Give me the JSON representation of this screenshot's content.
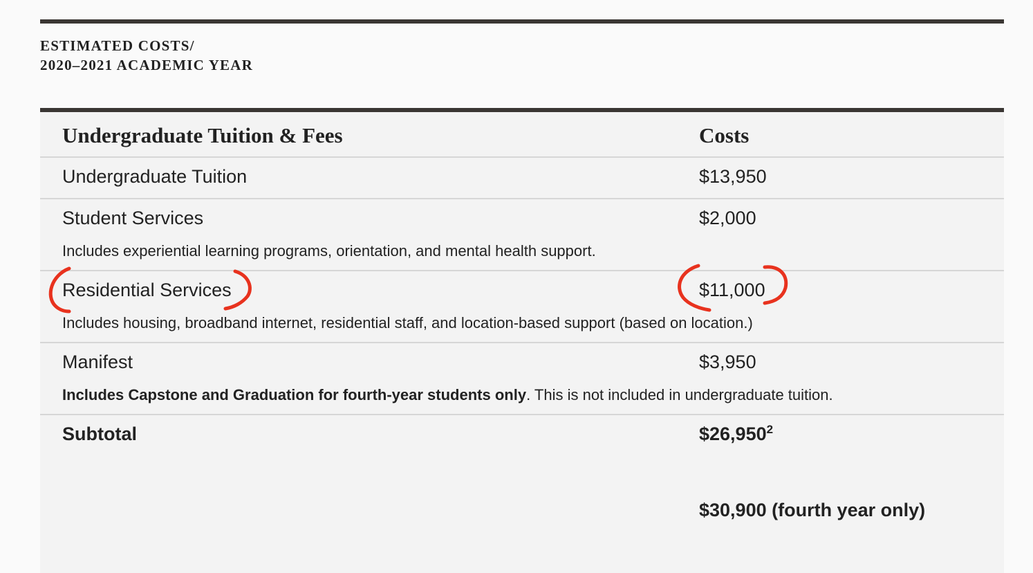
{
  "heading": {
    "line1": "ESTIMATED COSTS/",
    "line2": "2020–2021 ACADEMIC YEAR"
  },
  "table": {
    "header": {
      "label": "Undergraduate Tuition & Fees",
      "cost": "Costs"
    },
    "rows": [
      {
        "label": "Undergraduate Tuition",
        "cost": "$13,950"
      },
      {
        "label": "Student Services",
        "cost": "$2,000",
        "description": "Includes experiential learning programs, orientation, and mental health support."
      },
      {
        "label": "Residential Services",
        "cost": "$11,000",
        "description": "Includes housing, broadband internet, residential staff, and location-based support (based on location.)"
      },
      {
        "label": "Manifest",
        "cost": "$3,950",
        "description_bold": "Includes Capstone and Graduation for fourth-year students only",
        "description_rest": ". This is not included in undergraduate tuition."
      }
    ],
    "subtotal": {
      "label": "Subtotal",
      "cost": "$26,950",
      "footnote": "2",
      "fourth_year_cost": "$30,900 (fourth year only)"
    }
  },
  "annotation_color": "#e8321e"
}
